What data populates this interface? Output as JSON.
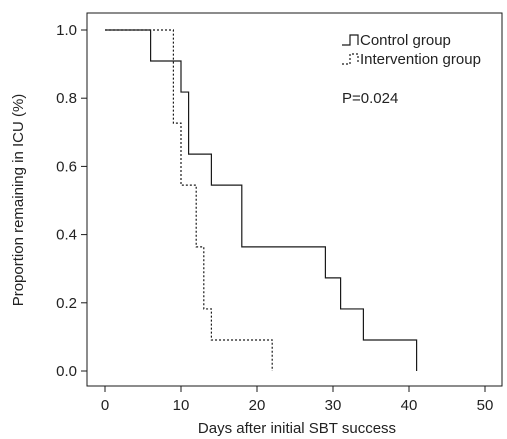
{
  "chart_data": {
    "type": "line",
    "subtype": "kaplan-meier step curve",
    "title": "",
    "xlabel": "Days after initial SBT success",
    "ylabel": "Proportion remaining in ICU (%)",
    "xlim": [
      0,
      50
    ],
    "ylim": [
      0,
      1.0
    ],
    "xticks": [
      "0",
      "10",
      "20",
      "30",
      "40",
      "50"
    ],
    "yticks": [
      "0.0",
      "0.2",
      "0.4",
      "0.6",
      "0.8",
      "1.0"
    ],
    "grid": false,
    "legend_position": "top-right",
    "annotation": "P=0.024",
    "series": [
      {
        "name": "Control group",
        "line_style": "solid",
        "color": "#1a1a1a",
        "x": [
          0,
          6,
          10,
          11,
          14,
          18,
          29,
          31,
          34,
          41
        ],
        "y": [
          1.0,
          0.909,
          0.818,
          0.636,
          0.545,
          0.364,
          0.273,
          0.182,
          0.091,
          0.0
        ]
      },
      {
        "name": "Intervention group",
        "line_style": "dashed",
        "color": "#1a1a1a",
        "x": [
          0,
          9,
          10,
          12,
          13,
          14,
          22
        ],
        "y": [
          1.0,
          0.727,
          0.545,
          0.364,
          0.182,
          0.091,
          0.0
        ]
      }
    ]
  }
}
